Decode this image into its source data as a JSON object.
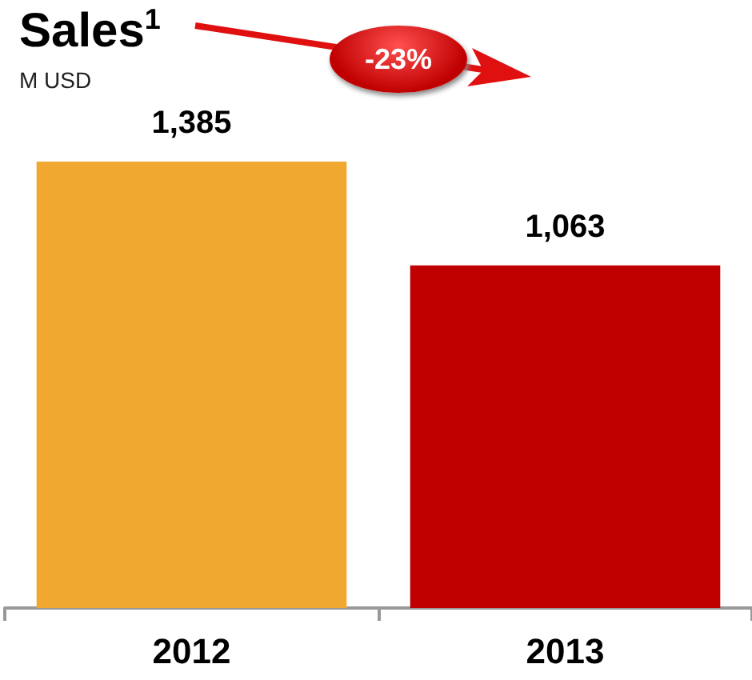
{
  "chart_data": {
    "type": "bar",
    "title": "Sales$^{1}$",
    "subtitle": "M USD",
    "categories": [
      "2012",
      "2013"
    ],
    "values": [
      1385,
      1063
    ],
    "colors": [
      "#f0a830",
      "#c00000"
    ],
    "value_labels": [
      "1,385",
      "1,063"
    ],
    "annotations": [
      "-23%"
    ]
  }
}
